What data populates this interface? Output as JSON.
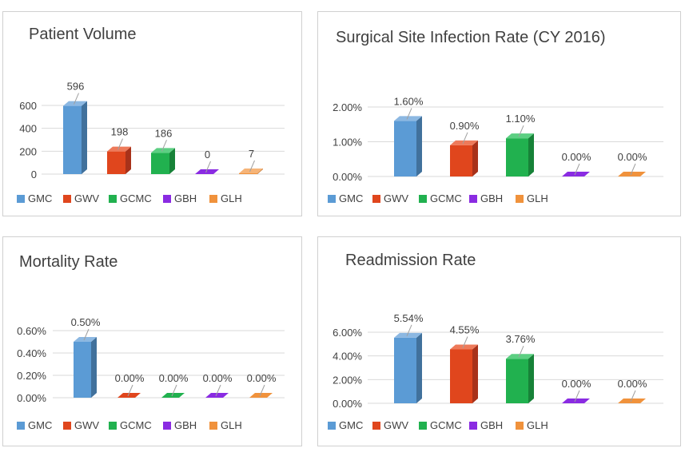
{
  "colors": {
    "GMC": {
      "front": "#5b9bd5",
      "side": "#41719c",
      "top": "#8cb8e2"
    },
    "GWV": {
      "front": "#e0461d",
      "side": "#a8321a",
      "top": "#ee7a5a"
    },
    "GCMC": {
      "front": "#21b14f",
      "side": "#178238",
      "top": "#5ccf82"
    },
    "GBH": {
      "front": "#8a2be2",
      "side": "#6a1fb0",
      "top": "#ab64ee"
    },
    "GLH": {
      "front": "#f0923c",
      "side": "#c06d24",
      "top": "#f6b478"
    }
  },
  "chart_data": [
    {
      "id": "patient-volume",
      "type": "bar",
      "title": "Patient Volume",
      "categories": [
        "GMC",
        "GWV",
        "GCMC",
        "GBH",
        "GLH"
      ],
      "values": [
        596,
        198,
        186,
        0,
        7
      ],
      "data_labels": [
        "596",
        "198",
        "186",
        "0",
        "7"
      ],
      "ylim": [
        0,
        600
      ],
      "yticks": [
        0,
        200,
        400,
        600
      ],
      "ytick_labels": [
        "0",
        "200",
        "400",
        "600"
      ],
      "legend": [
        "GMC",
        "GWV",
        "GCMC",
        "GBH",
        "GLH"
      ],
      "legend_position": "bottom",
      "grid": true
    },
    {
      "id": "ssi-rate",
      "type": "bar",
      "title": "Surgical Site Infection Rate (CY 2016)",
      "categories": [
        "GMC",
        "GWV",
        "GCMC",
        "GBH",
        "GLH"
      ],
      "values": [
        1.6,
        0.9,
        1.1,
        0.0,
        0.0
      ],
      "data_labels": [
        "1.60%",
        "0.90%",
        "1.10%",
        "0.00%",
        "0.00%"
      ],
      "ylim": [
        0,
        2
      ],
      "yticks": [
        0,
        1,
        2
      ],
      "ytick_labels": [
        "0.00%",
        "1.00%",
        "2.00%"
      ],
      "legend": [
        "GMC",
        "GWV",
        "GCMC",
        "GBH",
        "GLH"
      ],
      "legend_position": "bottom",
      "grid": true
    },
    {
      "id": "mortality-rate",
      "type": "bar",
      "title": "Mortality Rate",
      "categories": [
        "GMC",
        "GWV",
        "GCMC",
        "GBH",
        "GLH"
      ],
      "values": [
        0.5,
        0.0,
        0.0,
        0.0,
        0.0
      ],
      "data_labels": [
        "0.50%",
        "0.00%",
        "0.00%",
        "0.00%",
        "0.00%"
      ],
      "ylim": [
        0,
        0.6
      ],
      "yticks": [
        0,
        0.2,
        0.4,
        0.6
      ],
      "ytick_labels": [
        "0.00%",
        "0.20%",
        "0.40%",
        "0.60%"
      ],
      "legend": [
        "GMC",
        "GWV",
        "GCMC",
        "GBH",
        "GLH"
      ],
      "legend_position": "bottom",
      "grid": true
    },
    {
      "id": "readmission-rate",
      "type": "bar",
      "title": "Readmission Rate",
      "categories": [
        "GMC",
        "GWV",
        "GCMC",
        "GBH",
        "GLH"
      ],
      "values": [
        5.54,
        4.55,
        3.76,
        0.0,
        0.0
      ],
      "data_labels": [
        "5.54%",
        "4.55%",
        "3.76%",
        "0.00%",
        "0.00%"
      ],
      "ylim": [
        0,
        6
      ],
      "yticks": [
        0,
        2,
        4,
        6
      ],
      "ytick_labels": [
        "0.00%",
        "2.00%",
        "4.00%",
        "6.00%"
      ],
      "legend": [
        "GMC",
        "GWV",
        "GCMC",
        "GBH",
        "GLH"
      ],
      "legend_position": "bottom",
      "grid": true
    }
  ]
}
